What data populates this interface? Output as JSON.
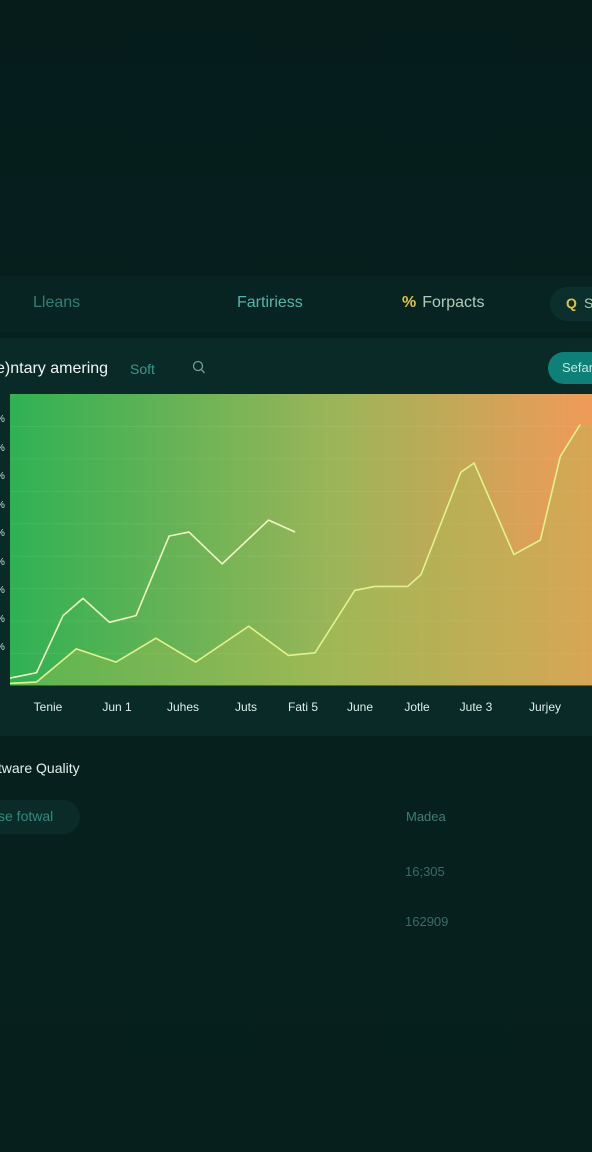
{
  "nav": {
    "items": [
      {
        "label": "Lleans"
      },
      {
        "label": "Fartiriess"
      },
      {
        "label": "Forpacts",
        "icon": "percent-icon"
      }
    ],
    "pill": {
      "icon": "search-icon",
      "label": "S"
    }
  },
  "card": {
    "title": "e)ntary amering",
    "sort_label": "Soft",
    "search_icon": "search-icon",
    "button_label": "Sefan"
  },
  "chart_data": {
    "type": "line",
    "x": [
      "Tenie",
      "Jun 1",
      "Juhes",
      "Juts",
      "Fati 5",
      "June",
      "Jotle",
      "Jute 3",
      "Jurjey"
    ],
    "y_tick_labels": [
      "%",
      "%",
      "%",
      "%",
      "%",
      "%",
      "%",
      "%",
      "%"
    ],
    "series": [
      {
        "color": "#f1f6c4",
        "points": [
          [
            0,
            6
          ],
          [
            0.4,
            10
          ],
          [
            0.8,
            53
          ],
          [
            1.1,
            66
          ],
          [
            1.5,
            48
          ],
          [
            1.9,
            53
          ],
          [
            2.4,
            113
          ],
          [
            2.7,
            116
          ],
          [
            3.2,
            92
          ],
          [
            3.9,
            125
          ],
          [
            4.3,
            116
          ]
        ]
      },
      {
        "color": "#e2f28e",
        "points": [
          [
            0,
            2
          ],
          [
            0.4,
            3
          ],
          [
            1.0,
            28
          ],
          [
            1.6,
            18
          ],
          [
            2.2,
            36
          ],
          [
            2.8,
            18
          ],
          [
            3.6,
            45
          ],
          [
            4.2,
            23
          ],
          [
            4.6,
            25
          ],
          [
            5.2,
            72
          ],
          [
            5.5,
            75
          ],
          [
            6.0,
            75
          ],
          [
            6.2,
            84
          ],
          [
            6.8,
            161
          ],
          [
            7.0,
            168
          ],
          [
            7.6,
            99
          ],
          [
            8.0,
            110
          ],
          [
            8.3,
            173
          ],
          [
            8.6,
            197
          ]
        ]
      }
    ],
    "area": {
      "fill_gradient": [
        "#2fb153",
        "#9ab558",
        "#f19a58"
      ]
    },
    "ylim": [
      0,
      220
    ],
    "grid": true
  },
  "lower": {
    "title": "ftware Quality",
    "filter_label": "se fotwal",
    "column_header": "Madea",
    "values": [
      "16;305",
      "162909"
    ]
  }
}
